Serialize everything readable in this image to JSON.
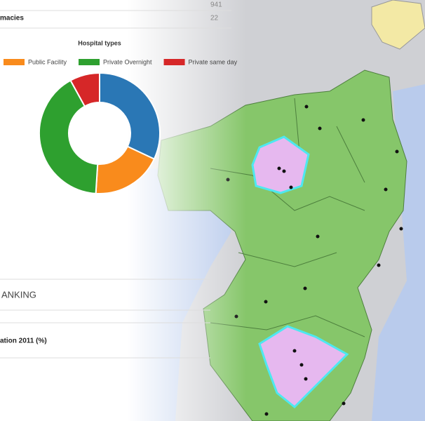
{
  "stats": [
    {
      "value": "941"
    },
    {
      "label": "macies",
      "value": "22"
    }
  ],
  "chart_data": {
    "type": "donut",
    "title": "Hospital types",
    "categories": [
      null,
      "Public Facility",
      "Private Overnight",
      "Private same day"
    ],
    "values": [
      32,
      19,
      41,
      8
    ],
    "colors": [
      "#2a77b5",
      "#f98b1c",
      "#2ea02f",
      "#d62728"
    ]
  },
  "sections": [
    "ANKING",
    "ation 2011 (%)"
  ]
}
